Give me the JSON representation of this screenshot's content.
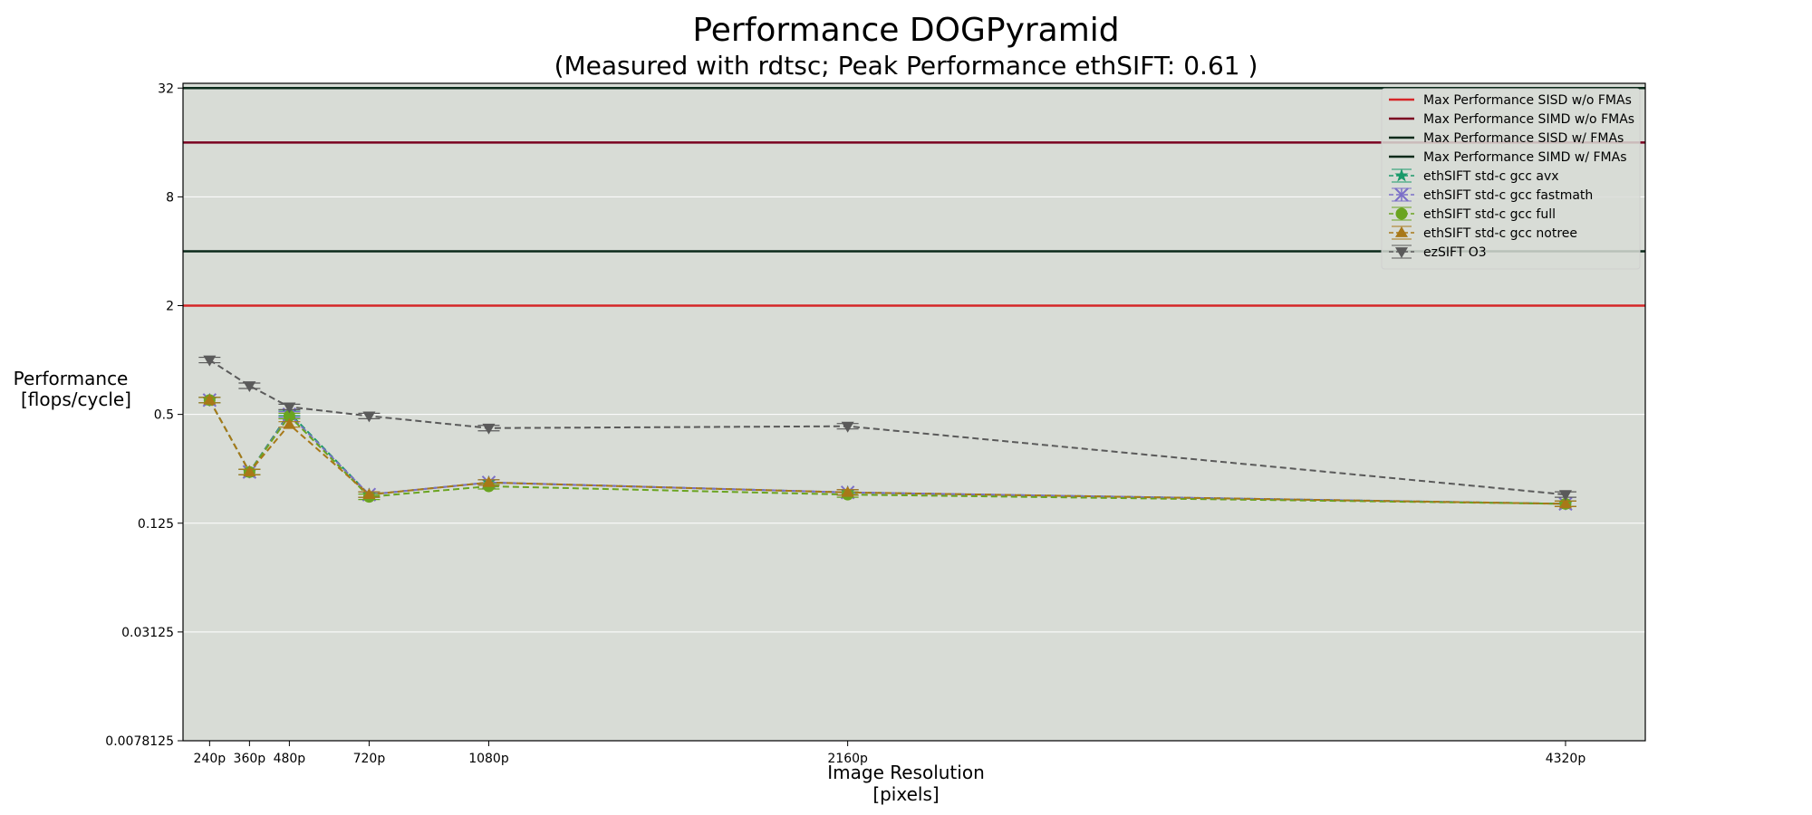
{
  "chart_data": {
    "type": "line",
    "title": "Performance DOGPyramid",
    "subtitle": "(Measured with rdtsc; Peak Performance ethSIFT: 0.61 )",
    "xlabel": [
      "Image Resolution",
      "[pixels]"
    ],
    "ylabel": [
      "Performance",
      "[flops/cycle]"
    ],
    "y_scale": "log2",
    "ylim": [
      0.0078125,
      34
    ],
    "y_ticks": [
      0.0078125,
      0.03125,
      0.125,
      0.5,
      2,
      8,
      32
    ],
    "y_tick_labels": [
      "0.0078125",
      "0.03125",
      "0.125",
      "0.5",
      "2",
      "8",
      "32"
    ],
    "x_categories": [
      "240p",
      "360p",
      "480p",
      "720p",
      "1080p",
      "2160p",
      "4320p"
    ],
    "x_values": [
      240,
      360,
      480,
      720,
      1080,
      2160,
      4320
    ],
    "x_range": [
      160,
      4560
    ],
    "grid": "horizontal",
    "background_color": "#d8dcd6",
    "legend_position": "upper right",
    "reference_lines": [
      {
        "name": "Max Performance SISD w/o FMAs",
        "value": 2,
        "color": "#d62728"
      },
      {
        "name": "Max Performance SIMD w/o FMAs",
        "value": 16,
        "color": "#7a0020"
      },
      {
        "name": "Max Performance SISD w/ FMAs",
        "value": 4,
        "color": "#0a2a1a"
      },
      {
        "name": "Max Performance SIMD w/ FMAs",
        "value": 32,
        "color": "#0a2a1a"
      }
    ],
    "series": [
      {
        "name": "ethSIFT std-c gcc avx",
        "color": "#1a9a6a",
        "marker": "star",
        "values": [
          0.6,
          0.24,
          0.51,
          0.18,
          0.21,
          0.185,
          0.16
        ]
      },
      {
        "name": "ethSIFT std-c gcc fastmath",
        "color": "#7b6fc8",
        "marker": "x",
        "values": [
          0.6,
          0.24,
          0.5,
          0.18,
          0.21,
          0.185,
          0.16
        ]
      },
      {
        "name": "ethSIFT std-c gcc full",
        "color": "#6aa420",
        "marker": "circle",
        "values": [
          0.6,
          0.24,
          0.49,
          0.175,
          0.2,
          0.18,
          0.16
        ]
      },
      {
        "name": "ethSIFT std-c gcc notree",
        "color": "#a87818",
        "marker": "triangle-up",
        "values": [
          0.6,
          0.24,
          0.44,
          0.18,
          0.21,
          0.185,
          0.16
        ]
      },
      {
        "name": "ezSIFT O3",
        "color": "#5a5a5a",
        "marker": "triangle-down",
        "values": [
          1.0,
          0.72,
          0.55,
          0.49,
          0.42,
          0.43,
          0.18
        ]
      }
    ]
  }
}
